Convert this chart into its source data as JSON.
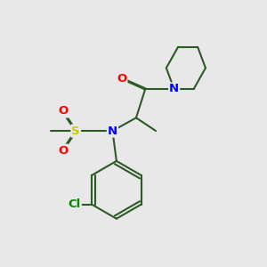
{
  "bg_color": "#e8e8e8",
  "bond_color": "#2d5a27",
  "atom_colors": {
    "N": "#0000ff",
    "O": "#ff0000",
    "S": "#cccc00",
    "Cl": "#008800",
    "C": "#2d5a27"
  },
  "line_width": 1.5,
  "font_size": 9.5
}
